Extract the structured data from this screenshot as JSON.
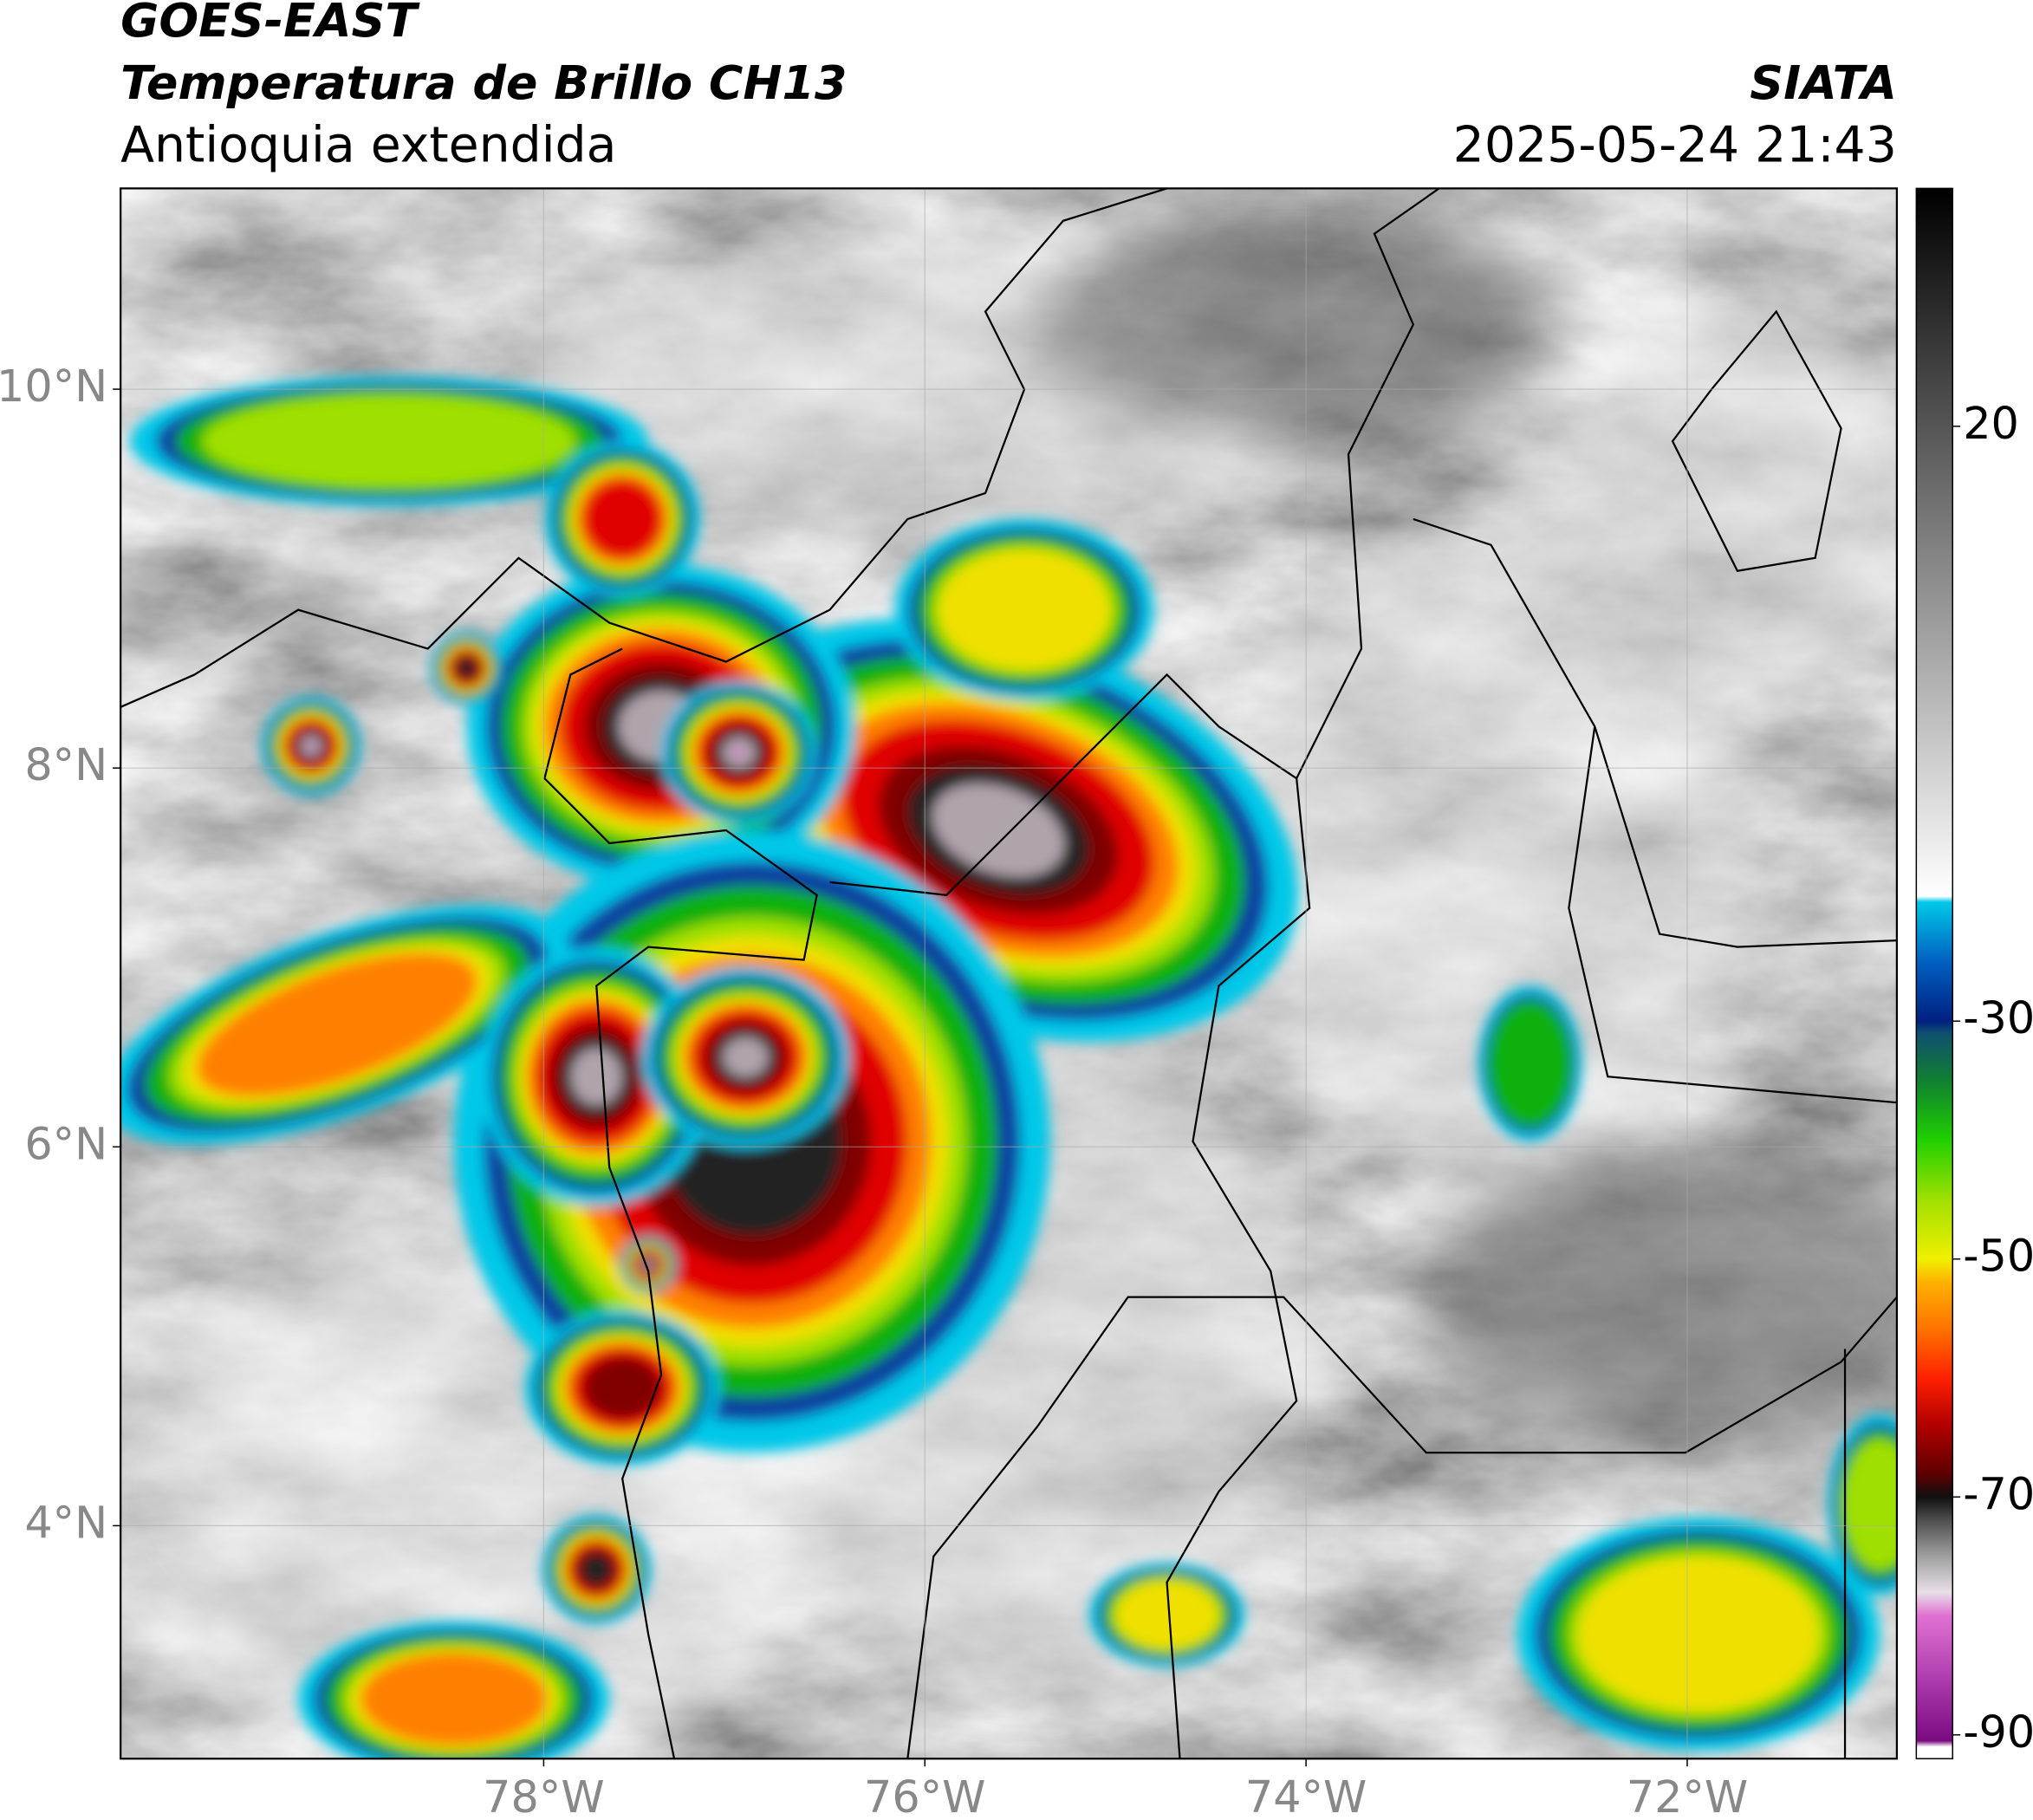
{
  "header": {
    "satellite": "GOES-EAST",
    "product": "Temperatura de Brillo CH13",
    "region": "Antioquia extendida",
    "agency": "SIATA",
    "timestamp": "2025-05-24 21:43"
  },
  "map": {
    "xlim": [
      -80.22,
      -70.9
    ],
    "ylim": [
      2.77,
      11.06
    ],
    "xticks": [
      {
        "value": -78,
        "label": "78°W"
      },
      {
        "value": -76,
        "label": "76°W"
      },
      {
        "value": -74,
        "label": "74°W"
      },
      {
        "value": -72,
        "label": "72°W"
      }
    ],
    "yticks": [
      {
        "value": 4,
        "label": "4°N"
      },
      {
        "value": 6,
        "label": "6°N"
      },
      {
        "value": 8,
        "label": "8°N"
      },
      {
        "value": 10,
        "label": "10°N"
      }
    ],
    "grid": true
  },
  "colorbar": {
    "lim": [
      -92,
      40
    ],
    "ticks": [
      -90,
      -70,
      -50,
      -30,
      20
    ],
    "stops": [
      {
        "value": -91,
        "color": "#ffffff"
      },
      {
        "value": -90.5,
        "color": "#7a0a80"
      },
      {
        "value": -85,
        "color": "#b040b0"
      },
      {
        "value": -80,
        "color": "#e070d0"
      },
      {
        "value": -78,
        "color": "#e8e0e8"
      },
      {
        "value": -75,
        "color": "#a0a0a0"
      },
      {
        "value": -72,
        "color": "#505050"
      },
      {
        "value": -70,
        "color": "#101010"
      },
      {
        "value": -68,
        "color": "#600000"
      },
      {
        "value": -64,
        "color": "#b00000"
      },
      {
        "value": -60,
        "color": "#ff2000"
      },
      {
        "value": -56,
        "color": "#ff7000"
      },
      {
        "value": -52,
        "color": "#ffb000"
      },
      {
        "value": -50,
        "color": "#f0f000"
      },
      {
        "value": -45,
        "color": "#a0e000"
      },
      {
        "value": -40,
        "color": "#20d000"
      },
      {
        "value": -35,
        "color": "#108030"
      },
      {
        "value": -31,
        "color": "#105070"
      },
      {
        "value": -30,
        "color": "#002080"
      },
      {
        "value": -25,
        "color": "#0060c0"
      },
      {
        "value": -20,
        "color": "#00c8e8"
      },
      {
        "value": -19.5,
        "color": "#ffffff"
      },
      {
        "value": 40,
        "color": "#000000"
      }
    ]
  }
}
